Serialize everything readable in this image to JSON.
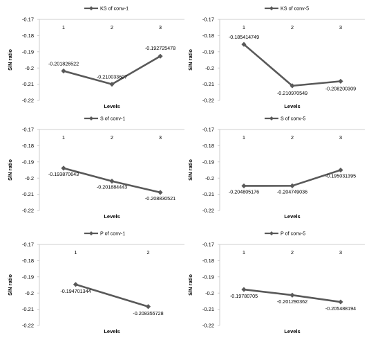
{
  "chart_data": [
    {
      "type": "line",
      "legend": "KS of conv-1",
      "legend_position": "top",
      "categories": [
        "1",
        "2",
        "3"
      ],
      "values": [
        -0.201826522,
        -0.210033607,
        -0.192725478
      ],
      "value_labels": [
        "-0.201826522",
        "-0.210033607",
        "-0.192725478"
      ],
      "xlabel": "Levels",
      "ylabel": "S/N ratio",
      "ylim": [
        -0.22,
        -0.17
      ],
      "yticks": [
        -0.17,
        -0.18,
        -0.19,
        -0.2,
        -0.21,
        -0.22
      ],
      "ytick_labels": [
        "-0.17",
        "-0.18",
        "-0.19",
        "-0.2",
        "-0.21",
        "-0.22"
      ],
      "x_axis_position": "top",
      "grid": false,
      "series_color": "#595959"
    },
    {
      "type": "line",
      "legend": "KS of conv-5",
      "legend_position": "top",
      "categories": [
        "1",
        "2",
        "3"
      ],
      "values": [
        -0.185414749,
        -0.210970549,
        -0.208200309
      ],
      "value_labels": [
        "-0.185414749",
        "-0.210970549",
        "-0.208200309"
      ],
      "xlabel": "Levels",
      "ylabel": "S/N ratio",
      "ylim": [
        -0.22,
        -0.17
      ],
      "yticks": [
        -0.17,
        -0.18,
        -0.19,
        -0.2,
        -0.21,
        -0.22
      ],
      "ytick_labels": [
        "-0.17",
        "-0.18",
        "-0.19",
        "-0.2",
        "-0.21",
        "-0.22"
      ],
      "x_axis_position": "top",
      "grid": false,
      "series_color": "#595959"
    },
    {
      "type": "line",
      "legend": "S of conv-1",
      "legend_position": "top",
      "categories": [
        "1",
        "2",
        "3"
      ],
      "values": [
        -0.193870643,
        -0.201884443,
        -0.208830521
      ],
      "value_labels": [
        "-0.193870643",
        "-0.201884443",
        "-0.208830521"
      ],
      "xlabel": "Levels",
      "ylabel": "S/N ratio",
      "ylim": [
        -0.22,
        -0.17
      ],
      "yticks": [
        -0.17,
        -0.18,
        -0.19,
        -0.2,
        -0.21,
        -0.22
      ],
      "ytick_labels": [
        "-0.17",
        "-0.18",
        "-0.19",
        "-0.2",
        "-0.21",
        "-0.22"
      ],
      "x_axis_position": "top",
      "grid": false,
      "series_color": "#595959"
    },
    {
      "type": "line",
      "legend": "S of conv-5",
      "legend_position": "top",
      "categories": [
        "1",
        "2",
        "3"
      ],
      "values": [
        -0.204805176,
        -0.204749036,
        -0.195031395
      ],
      "value_labels": [
        "-0.204805176",
        "-0.204749036",
        "-0.195031395"
      ],
      "xlabel": "Levels",
      "ylabel": "S/N ratio",
      "ylim": [
        -0.22,
        -0.17
      ],
      "yticks": [
        -0.17,
        -0.18,
        -0.19,
        -0.2,
        -0.21,
        -0.22
      ],
      "ytick_labels": [
        "-0.17",
        "-0.18",
        "-0.19",
        "-0.2",
        "-0.21",
        "-0.22"
      ],
      "x_axis_position": "top",
      "grid": false,
      "series_color": "#595959"
    },
    {
      "type": "line",
      "legend": "P of conv-1",
      "legend_position": "top",
      "categories": [
        "1",
        "2"
      ],
      "values": [
        -0.194701344,
        -0.208355728
      ],
      "value_labels": [
        "-0.194701344",
        "-0.208355728"
      ],
      "xlabel": "Levels",
      "ylabel": "S/N ratio",
      "ylim": [
        -0.22,
        -0.17
      ],
      "yticks": [
        -0.17,
        -0.18,
        -0.19,
        -0.2,
        -0.21,
        -0.22
      ],
      "ytick_labels": [
        "-0.17",
        "-0.18",
        "-0.19",
        "-0.2",
        "-0.21",
        "-0.22"
      ],
      "x_axis_position": "top",
      "grid": false,
      "series_color": "#595959"
    },
    {
      "type": "line",
      "legend": "P of conv-5",
      "legend_position": "top",
      "categories": [
        "1",
        "2",
        "3"
      ],
      "values": [
        -0.19780705,
        -0.201290362,
        -0.205488194
      ],
      "value_labels": [
        "-0.19780705",
        "-0.201290362",
        "-0.205488194"
      ],
      "xlabel": "Levels",
      "ylabel": "S/N ratio",
      "ylim": [
        -0.22,
        -0.17
      ],
      "yticks": [
        -0.17,
        -0.18,
        -0.19,
        -0.2,
        -0.21,
        -0.22
      ],
      "ytick_labels": [
        "-0.17",
        "-0.18",
        "-0.19",
        "-0.2",
        "-0.21",
        "-0.22"
      ],
      "x_axis_position": "top",
      "grid": false,
      "series_color": "#595959"
    }
  ]
}
